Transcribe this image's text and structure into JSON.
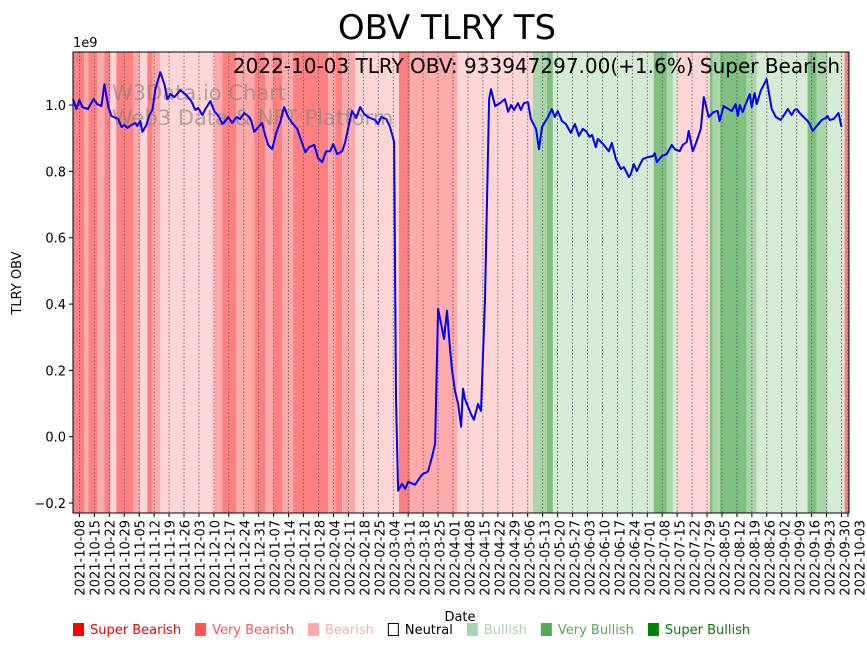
{
  "chart_data": {
    "type": "line",
    "title": "OBV TLRY TS",
    "subtitle": "2022-10-03 TLRY OBV: 933947297.00(+1.6%) Super Bearish",
    "watermark": [
      "W3Data.io Chart",
      "Web3 Data & NFT Platform"
    ],
    "xlabel": "Date",
    "ylabel": "TLRY OBV",
    "y_multiplier_label": "1e9",
    "ylim": [
      -0.23,
      1.16
    ],
    "yticks": [
      -0.2,
      0.0,
      0.2,
      0.4,
      0.6,
      0.8,
      1.0
    ],
    "ytick_labels": [
      "−0.2",
      "0.0",
      "0.2",
      "0.4",
      "0.6",
      "0.8",
      "1.0"
    ],
    "x_origin_date": "2021-10-08",
    "xlim_days": [
      -3,
      360.5
    ],
    "xticks_days": [
      0,
      7,
      14,
      21,
      28,
      35,
      42,
      49,
      56,
      63,
      70,
      77,
      84,
      91,
      98,
      105,
      112,
      119,
      126,
      133,
      140,
      147,
      154,
      161,
      168,
      175,
      182,
      189,
      196,
      203,
      210,
      217,
      224,
      231,
      238,
      245,
      252,
      259,
      266,
      273,
      280,
      287,
      294,
      301,
      308,
      315,
      322,
      329,
      336,
      343,
      350,
      357,
      360
    ],
    "xtick_labels": [
      "2021-10-08",
      "2021-10-15",
      "2021-10-22",
      "2021-10-29",
      "2021-11-05",
      "2021-11-12",
      "2021-11-19",
      "2021-11-26",
      "2021-12-03",
      "2021-12-10",
      "2021-12-17",
      "2021-12-24",
      "2021-12-31",
      "2022-01-07",
      "2022-01-14",
      "2022-01-21",
      "2022-01-28",
      "2022-02-04",
      "2022-02-11",
      "2022-02-18",
      "2022-02-25",
      "2022-03-04",
      "2022-03-11",
      "2022-03-18",
      "2022-03-25",
      "2022-04-01",
      "2022-04-08",
      "2022-04-15",
      "2022-04-22",
      "2022-04-29",
      "2022-05-06",
      "2022-05-13",
      "2022-05-20",
      "2022-05-27",
      "2022-06-03",
      "2022-06-10",
      "2022-06-17",
      "2022-06-24",
      "2022-07-01",
      "2022-07-08",
      "2022-07-15",
      "2022-07-22",
      "2022-07-29",
      "2022-08-05",
      "2022-08-12",
      "2022-08-19",
      "2022-08-26",
      "2022-09-02",
      "2022-09-09",
      "2022-09-16",
      "2022-09-23",
      "2022-09-30",
      "2022-10-03"
    ],
    "series": [
      {
        "name": "TLRY OBV",
        "color": "#0000ff",
        "x_days": [
          -3,
          -1.4,
          0,
          1.4,
          4,
          6.6,
          8.4,
          10.3,
          11.7,
          13.6,
          15,
          18.2,
          19.7,
          21,
          22.5,
          24.3,
          26.2,
          27,
          28.5,
          29.5,
          31.4,
          32.8,
          34.2,
          35.6,
          37.9,
          39.8,
          41.2,
          42.6,
          44.5,
          47.3,
          50.1,
          52.4,
          54.3,
          55.7,
          57.6,
          59,
          61.3,
          63.2,
          65.5,
          66.9,
          68.3,
          69.7,
          71.6,
          73.5,
          75.3,
          77.2,
          79.6,
          80.5,
          81.9,
          83.8,
          85.6,
          87,
          88.4,
          90.3,
          92.2,
          94.1,
          95.9,
          97.8,
          99.7,
          102,
          105.8,
          107.6,
          110,
          111.8,
          113.7,
          115.6,
          117.5,
          118.9,
          120.7,
          123.1,
          124.5,
          125.9,
          127.7,
          129.6,
          131.5,
          133.4,
          135.2,
          138.5,
          139.9,
          141.3,
          143.7,
          145.5,
          147.4,
          148.3,
          149.3,
          151.1,
          152.6,
          154,
          157.2,
          159.1,
          160.5,
          163.3,
          165.2,
          166.6,
          168,
          170.8,
          172.2,
          173.6,
          174.5,
          175.9,
          177.4,
          178.8,
          179.7,
          180.6,
          183.4,
          184.8,
          186.7,
          188.1,
          190,
          191.9,
          192.8,
          194.7,
          197,
          199.3,
          200.8,
          202.2,
          203.6,
          205.4,
          206.8,
          208.2,
          210.1,
          211.5,
          213.9,
          215.3,
          216.7,
          219.5,
          221.3,
          222.7,
          224.1,
          226,
          227.9,
          230.2,
          232.1,
          234,
          235.8,
          237.2,
          239.1,
          240.1,
          241.9,
          242.9,
          245.2,
          248,
          249.4,
          251.3,
          253.6,
          255,
          257.4,
          258.3,
          259.7,
          261.1,
          263.9,
          266.3,
          268.6,
          269.5,
          270.5,
          272.8,
          275.1,
          277.5,
          278.9,
          281.2,
          282.6,
          284.5,
          285.4,
          287.3,
          288.7,
          291.1,
          292.5,
          294.8,
          297.1,
          299,
          299.9,
          301.8,
          303.2,
          305.6,
          307.4,
          308.4,
          309.3,
          310.7,
          312.1,
          314,
          314.9,
          316.3,
          317.3,
          319.1,
          321.9,
          324.3,
          326.2,
          328.5,
          330.4,
          331.8,
          333.6,
          335,
          336,
          337.4,
          338.3,
          341.1,
          342.1,
          343.5,
          345.8,
          347.7,
          349.6,
          350.5,
          351.4,
          353.3,
          355.6,
          357,
          358.9,
          360
        ],
        "obv_e9": [
          1.018,
          0.988,
          1.015,
          0.994,
          0.988,
          1.018,
          1.003,
          0.997,
          1.063,
          0.994,
          0.967,
          0.958,
          0.934,
          0.94,
          0.931,
          0.94,
          0.946,
          0.937,
          0.952,
          0.919,
          0.94,
          0.97,
          0.985,
          1.048,
          1.099,
          1.063,
          1.018,
          1.033,
          1.024,
          1.045,
          1.03,
          1.012,
          0.985,
          0.991,
          0.97,
          0.988,
          1.012,
          0.982,
          0.964,
          0.943,
          0.952,
          0.964,
          0.946,
          0.964,
          0.958,
          0.976,
          0.964,
          0.952,
          0.919,
          0.934,
          0.946,
          0.91,
          0.88,
          0.867,
          0.916,
          0.949,
          0.994,
          0.964,
          0.946,
          0.928,
          0.858,
          0.873,
          0.88,
          0.84,
          0.828,
          0.861,
          0.861,
          0.883,
          0.852,
          0.861,
          0.889,
          0.931,
          0.982,
          0.961,
          0.994,
          0.973,
          0.964,
          0.955,
          0.943,
          0.964,
          0.958,
          0.934,
          0.889,
          0.114,
          -0.163,
          -0.142,
          -0.157,
          -0.136,
          -0.145,
          -0.127,
          -0.114,
          -0.105,
          -0.06,
          -0.021,
          0.386,
          0.295,
          0.38,
          0.265,
          0.205,
          0.139,
          0.099,
          0.03,
          0.145,
          0.114,
          0.069,
          0.051,
          0.099,
          0.078,
          0.416,
          1.018,
          1.048,
          0.997,
          1.006,
          1.018,
          0.98,
          1.0,
          0.985,
          1.006,
          0.985,
          1.006,
          1.009,
          0.958,
          0.928,
          0.867,
          0.934,
          0.964,
          0.988,
          0.964,
          0.982,
          0.952,
          0.943,
          0.916,
          0.943,
          0.907,
          0.928,
          0.922,
          0.904,
          0.91,
          0.873,
          0.898,
          0.883,
          0.861,
          0.886,
          0.837,
          0.807,
          0.813,
          0.783,
          0.792,
          0.822,
          0.801,
          0.837,
          0.843,
          0.846,
          0.855,
          0.828,
          0.846,
          0.852,
          0.88,
          0.867,
          0.861,
          0.88,
          0.889,
          0.922,
          0.861,
          0.883,
          0.928,
          1.024,
          0.964,
          0.979,
          0.982,
          0.952,
          0.997,
          0.991,
          0.982,
          1.003,
          0.967,
          1.0,
          0.979,
          1.003,
          1.033,
          0.994,
          1.036,
          1.003,
          1.042,
          1.078,
          0.988,
          0.964,
          0.955,
          0.973,
          0.988,
          0.97,
          0.985,
          0.988,
          0.976,
          0.97,
          0.952,
          0.943,
          0.922,
          0.94,
          0.955,
          0.961,
          0.967,
          0.955,
          0.958,
          0.976,
          0.934
        ]
      }
    ],
    "sentiment_bands": [
      [
        -3,
        2.3,
        -3
      ],
      [
        2.3,
        4.2,
        -2
      ],
      [
        4.2,
        8.4,
        -3
      ],
      [
        8.4,
        11.7,
        -2
      ],
      [
        11.7,
        14.5,
        -3
      ],
      [
        14.5,
        17.3,
        -1
      ],
      [
        17.3,
        25.3,
        -3
      ],
      [
        25.3,
        28.5,
        -2
      ],
      [
        28.5,
        31.8,
        -1
      ],
      [
        31.8,
        34.2,
        -3
      ],
      [
        34.2,
        37.9,
        -2
      ],
      [
        37.9,
        63.2,
        -1
      ],
      [
        63.2,
        66.9,
        -2
      ],
      [
        66.9,
        73.5,
        -3
      ],
      [
        73.5,
        81.9,
        -2
      ],
      [
        81.9,
        87,
        -3
      ],
      [
        87,
        90.8,
        -2
      ],
      [
        90.8,
        95,
        -3
      ],
      [
        95,
        100.1,
        -2
      ],
      [
        100.1,
        116.5,
        -3
      ],
      [
        116.5,
        119.8,
        -2
      ],
      [
        119.8,
        123.1,
        -3
      ],
      [
        123.1,
        129.2,
        -2
      ],
      [
        129.2,
        149.7,
        -1
      ],
      [
        149.7,
        154.9,
        -3
      ],
      [
        154.9,
        176.9,
        -2
      ],
      [
        176.9,
        212.4,
        -1
      ],
      [
        212.4,
        219,
        2
      ],
      [
        219,
        221.8,
        3
      ],
      [
        221.8,
        269,
        1
      ],
      [
        269,
        275.2,
        3
      ],
      [
        275.2,
        278,
        2
      ],
      [
        278,
        279.9,
        1
      ],
      [
        279.9,
        295.3,
        -1
      ],
      [
        295.3,
        296.7,
        3
      ],
      [
        296.7,
        300,
        2
      ],
      [
        300,
        312.6,
        3
      ],
      [
        312.6,
        317.3,
        2
      ],
      [
        317.3,
        341.1,
        1
      ],
      [
        341.1,
        345.3,
        3
      ],
      [
        345.3,
        350.5,
        2
      ],
      [
        350.5,
        358.4,
        1
      ],
      [
        358.4,
        360.5,
        -3
      ]
    ],
    "band_colors": {
      "-3": "#ff8080",
      "-2": "#ffaaaa",
      "-1": "#ffd5d5",
      "1": "#d5ebd5",
      "2": "#aad5aa",
      "3": "#80c080"
    },
    "legend": [
      {
        "label": "Super Bearish",
        "color": "#ff0000"
      },
      {
        "label": "Very Bearish",
        "color": "#ff5555"
      },
      {
        "label": "Bearish",
        "color": "#ffaaaa"
      },
      {
        "label": "Neutral",
        "color": "#000000",
        "hollow": true
      },
      {
        "label": "Bullish",
        "color": "#aad4aa"
      },
      {
        "label": "Very Bullish",
        "color": "#55aa55"
      },
      {
        "label": "Super Bullish",
        "color": "#008000"
      }
    ],
    "legend_placement": "bottom",
    "grid": "vertical-dotted"
  }
}
